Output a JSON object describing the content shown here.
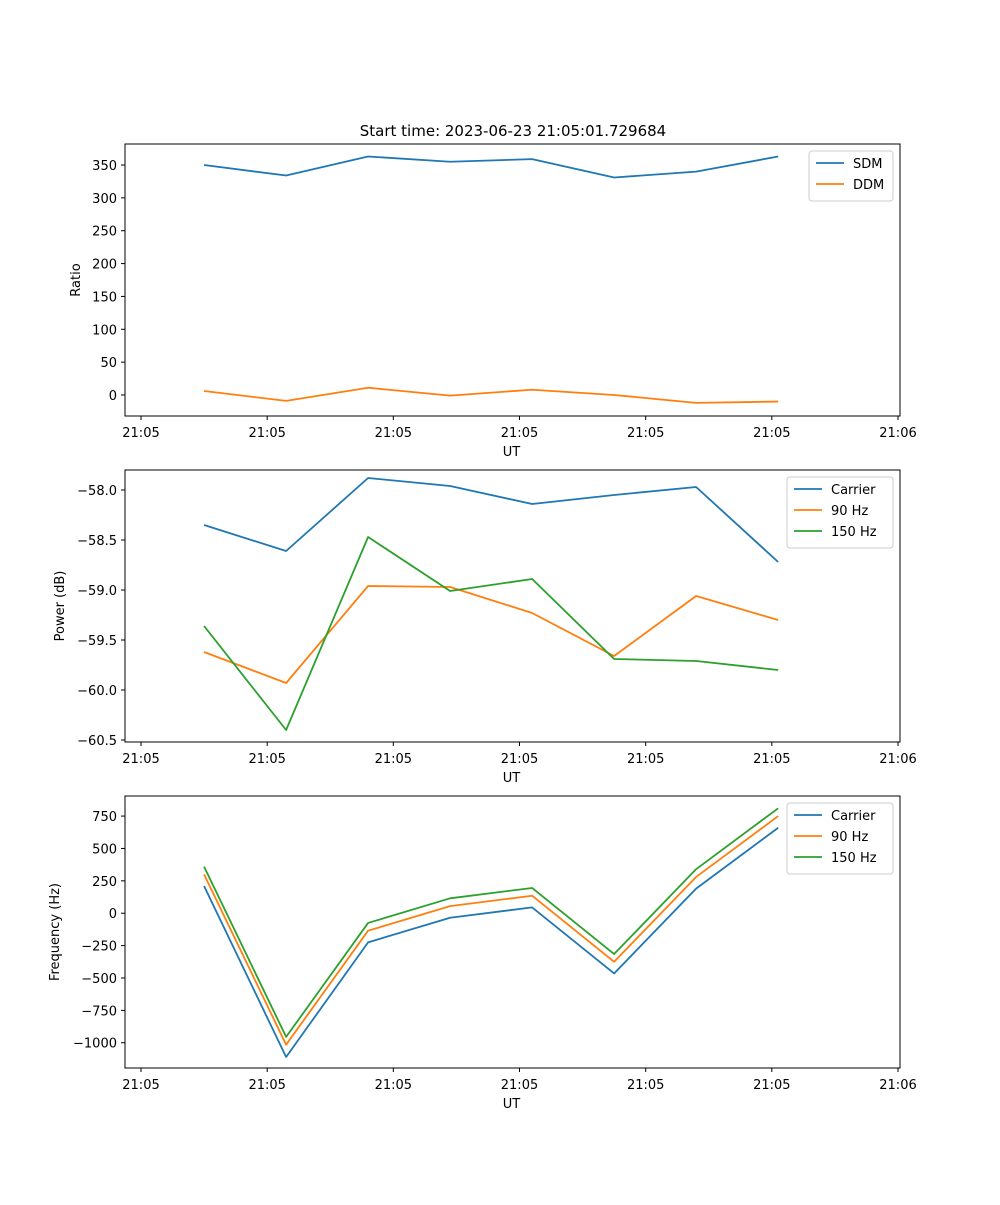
{
  "title": "Start time: 2023-06-23 21:05:01.729684",
  "colors": {
    "series1": "#1f77b4",
    "series2": "#ff7f0e",
    "series3": "#2ca02c",
    "axes": "#000000",
    "legend_border": "#cccccc"
  },
  "chart_data": [
    {
      "type": "line",
      "title": "Start time: 2023-06-23 21:05:01.729684",
      "xlabel": "UT",
      "ylabel": "Ratio",
      "xlim": [
        0,
        1.0
      ],
      "ylim": [
        -32,
        382
      ],
      "xtick_positions": [
        0.0,
        0.1667,
        0.3333,
        0.5,
        0.6667,
        0.8333,
        1.0
      ],
      "xtick_labels": [
        "21:05",
        "21:05",
        "21:05",
        "21:05",
        "21:05",
        "21:05",
        "21:06"
      ],
      "yticks": [
        0,
        50,
        100,
        150,
        200,
        250,
        300,
        350
      ],
      "ytick_labels": [
        "0",
        "50",
        "100",
        "150",
        "200",
        "250",
        "300",
        "350"
      ],
      "legend_position": "upper right",
      "x": [
        0.0833,
        0.1917,
        0.3,
        0.4083,
        0.5167,
        0.625,
        0.7333,
        0.8417
      ],
      "series": [
        {
          "name": "SDM",
          "values": [
            350,
            334,
            363,
            355,
            359,
            331,
            340,
            363
          ]
        },
        {
          "name": "DDM",
          "values": [
            6,
            -9,
            11,
            -1,
            8,
            0,
            -12,
            -10
          ]
        }
      ]
    },
    {
      "type": "line",
      "xlabel": "UT",
      "ylabel": "Power (dB)",
      "xlim": [
        0,
        1.0
      ],
      "ylim": [
        -60.52,
        -57.8
      ],
      "xtick_positions": [
        0.0,
        0.1667,
        0.3333,
        0.5,
        0.6667,
        0.8333,
        1.0
      ],
      "xtick_labels": [
        "21:05",
        "21:05",
        "21:05",
        "21:05",
        "21:05",
        "21:05",
        "21:06"
      ],
      "yticks": [
        -60.5,
        -60.0,
        -59.5,
        -59.0,
        -58.5,
        -58.0
      ],
      "ytick_labels": [
        "−60.5",
        "−60.0",
        "−59.5",
        "−59.0",
        "−58.5",
        "−58.0"
      ],
      "legend_position": "upper right",
      "x": [
        0.0833,
        0.1917,
        0.3,
        0.4083,
        0.5167,
        0.625,
        0.7333,
        0.8417
      ],
      "series": [
        {
          "name": "Carrier",
          "values": [
            -58.35,
            -58.61,
            -57.88,
            -57.96,
            -58.14,
            -58.05,
            -57.97,
            -58.72
          ]
        },
        {
          "name": "90 Hz",
          "values": [
            -59.62,
            -59.93,
            -58.96,
            -58.97,
            -59.23,
            -59.66,
            -59.06,
            -59.3
          ]
        },
        {
          "name": "150 Hz",
          "values": [
            -59.36,
            -60.4,
            -58.47,
            -59.01,
            -58.89,
            -59.69,
            -59.71,
            -59.8
          ]
        }
      ]
    },
    {
      "type": "line",
      "xlabel": "UT",
      "ylabel": "Frequency (Hz)",
      "xlim": [
        0,
        1.0
      ],
      "ylim": [
        -1195,
        905
      ],
      "xtick_positions": [
        0.0,
        0.1667,
        0.3333,
        0.5,
        0.6667,
        0.8333,
        1.0
      ],
      "xtick_labels": [
        "21:05",
        "21:05",
        "21:05",
        "21:05",
        "21:05",
        "21:05",
        "21:06"
      ],
      "yticks": [
        -1000,
        -750,
        -500,
        -250,
        0,
        250,
        500,
        750
      ],
      "ytick_labels": [
        "−1000",
        "−750",
        "−500",
        "−250",
        "0",
        "250",
        "500",
        "750"
      ],
      "legend_position": "upper right",
      "x": [
        0.0833,
        0.1917,
        0.3,
        0.4083,
        0.5167,
        0.625,
        0.7333,
        0.8417
      ],
      "series": [
        {
          "name": "Carrier",
          "values": [
            210,
            -1110,
            -225,
            -35,
            45,
            -465,
            190,
            660
          ]
        },
        {
          "name": "90 Hz",
          "values": [
            300,
            -1015,
            -135,
            55,
            135,
            -375,
            280,
            750
          ]
        },
        {
          "name": "150 Hz",
          "values": [
            360,
            -955,
            -75,
            115,
            195,
            -315,
            340,
            810
          ]
        }
      ]
    }
  ]
}
